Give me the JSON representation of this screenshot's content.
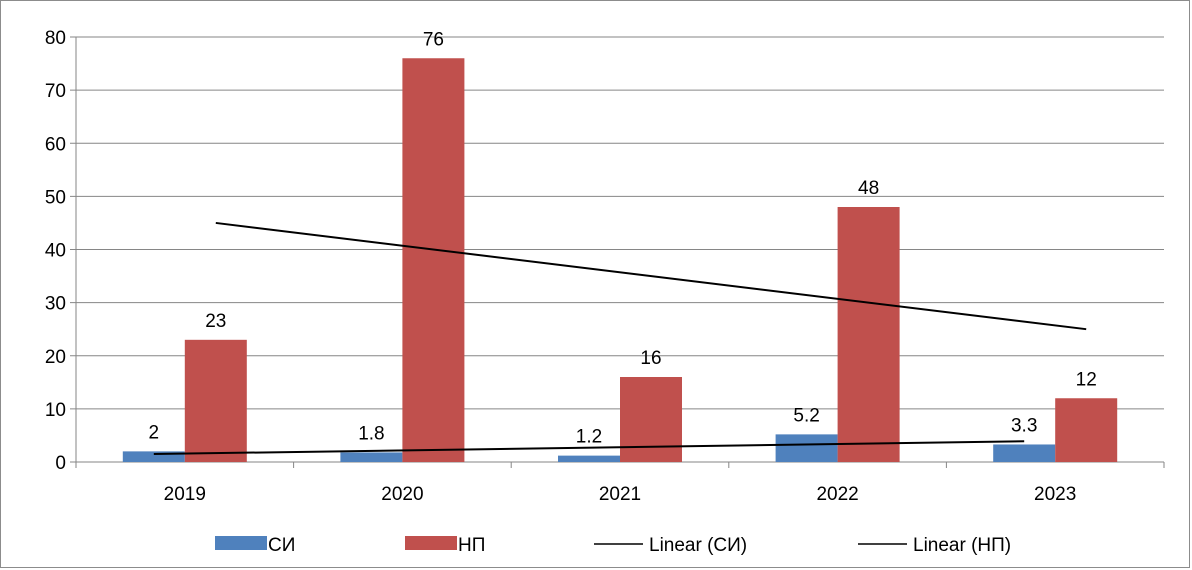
{
  "chart_data": {
    "type": "bar",
    "title": "",
    "xlabel": "",
    "ylabel": "",
    "categories": [
      "2019",
      "2020",
      "2021",
      "2022",
      "2023"
    ],
    "ylim": [
      0,
      80
    ],
    "yticks": [
      0,
      10,
      20,
      30,
      40,
      50,
      60,
      70,
      80
    ],
    "grid": "horizontal",
    "legend_position": "bottom",
    "series": [
      {
        "name": "СИ",
        "values": [
          2,
          1.8,
          1.2,
          5.2,
          3.3
        ],
        "labels": [
          "2",
          "1.8",
          "1.2",
          "5.2",
          "3.3"
        ],
        "color": "#4f81bd"
      },
      {
        "name": "НП",
        "values": [
          23,
          76,
          16,
          48,
          12
        ],
        "labels": [
          "23",
          "76",
          "16",
          "48",
          "12"
        ],
        "color": "#c0504d"
      }
    ],
    "trendlines": [
      {
        "name": "Linear (СИ)",
        "series": "СИ",
        "color": "#000000"
      },
      {
        "name": "Linear (НП)",
        "series": "НП",
        "color": "#000000"
      }
    ]
  }
}
